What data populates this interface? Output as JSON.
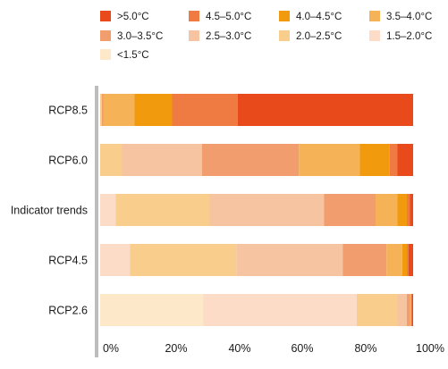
{
  "chart_data": {
    "type": "bar",
    "orientation": "horizontal",
    "stacked": true,
    "title": "",
    "xlabel": "",
    "ylabel": "",
    "xlim": [
      0,
      100
    ],
    "x_ticks": [
      "0%",
      "20%",
      "40%",
      "60%",
      "80%",
      "100%"
    ],
    "legend_position": "top",
    "categories": [
      "RCP8.5",
      "RCP6.0",
      "Indicator trends",
      "RCP4.5",
      "RCP2.6"
    ],
    "series": [
      {
        "name": "<1.5°C",
        "color": "#fde8c9",
        "values": [
          0,
          0,
          0,
          0,
          33
        ]
      },
      {
        "name": "1.5–2.0°C",
        "color": "#fcdcc7",
        "values": [
          0,
          0,
          5,
          9.5,
          49
        ]
      },
      {
        "name": "2.0–2.5°C",
        "color": "#f9cd8c",
        "values": [
          0.5,
          7,
          30,
          34,
          13
        ]
      },
      {
        "name": "2.5–3.0°C",
        "color": "#f7c4a2",
        "values": [
          0,
          25.5,
          36.5,
          34,
          3
        ]
      },
      {
        "name": "3.0–3.5°C",
        "color": "#f29d6e",
        "values": [
          0.5,
          31,
          16.5,
          14,
          1
        ]
      },
      {
        "name": "3.5–4.0°C",
        "color": "#f6b257",
        "values": [
          10,
          19.5,
          7,
          5,
          0.5
        ]
      },
      {
        "name": "4.0–4.5°C",
        "color": "#f29a0e",
        "values": [
          12,
          9.5,
          3,
          1.5,
          0
        ]
      },
      {
        "name": "4.5–5.0°C",
        "color": "#ef7b42",
        "values": [
          21,
          2.5,
          1,
          0.5,
          0
        ]
      },
      {
        "name": ">5.0°C",
        "color": "#e84a1c",
        "values": [
          56,
          5,
          1,
          1.5,
          0.5
        ]
      }
    ],
    "legend_order": [
      ">5.0°C",
      "4.5–5.0°C",
      "4.0–4.5°C",
      "3.5–4.0°C",
      "3.0–3.5°C",
      "2.5–3.0°C",
      "2.0–2.5°C",
      "1.5–2.0°C",
      "<1.5°C"
    ]
  }
}
